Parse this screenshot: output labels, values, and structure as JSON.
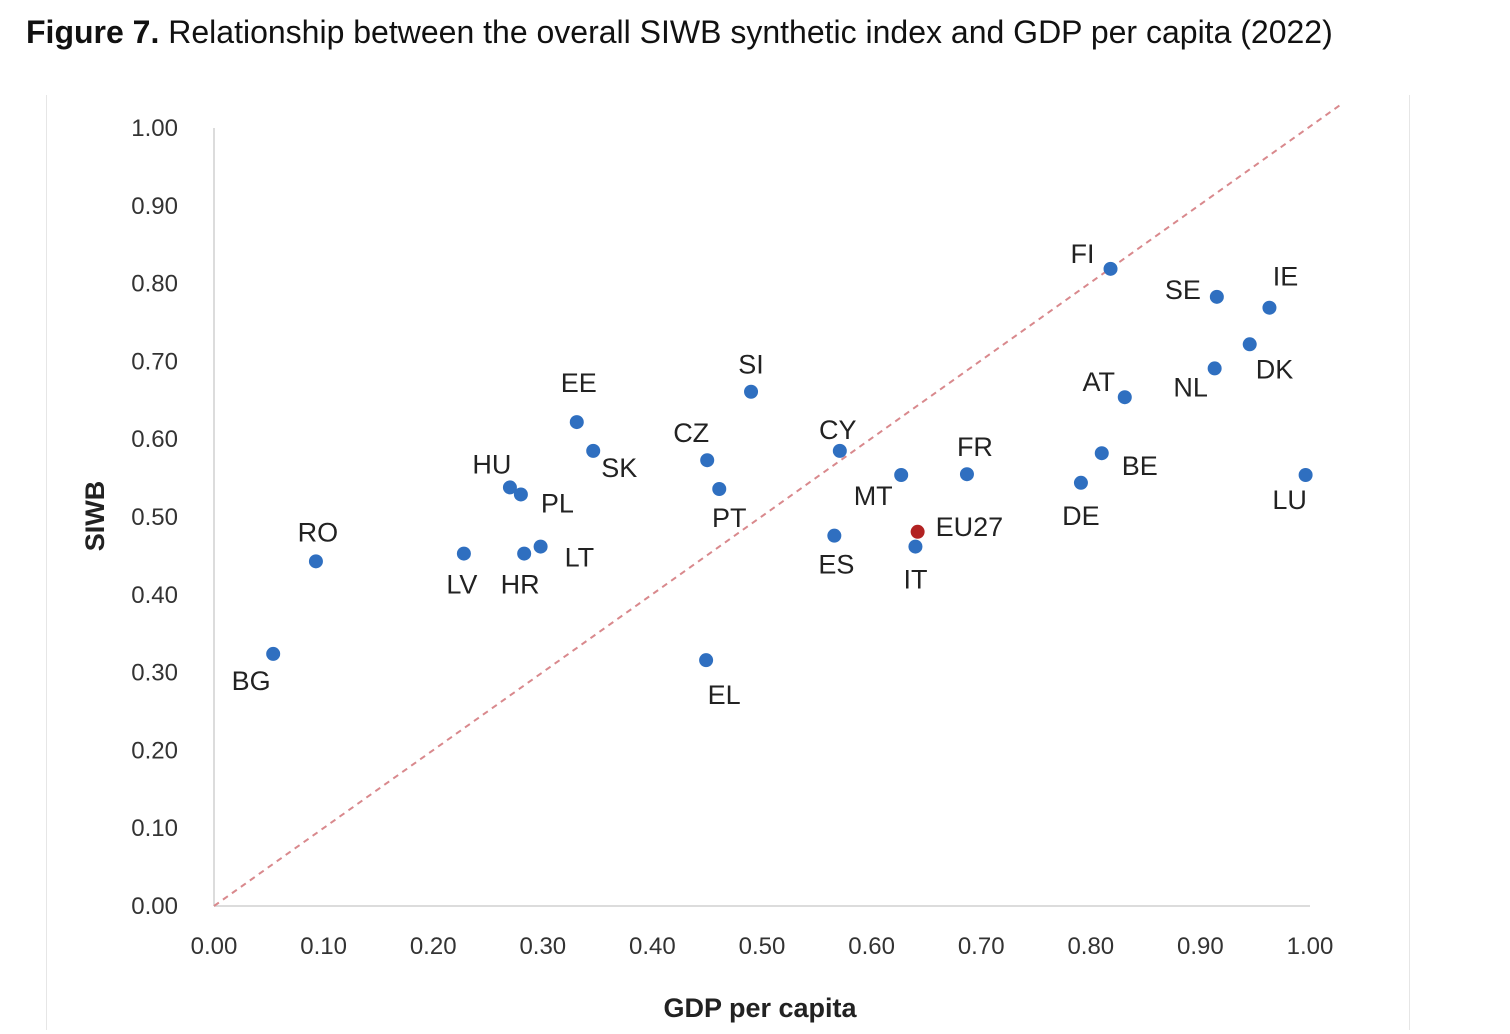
{
  "figure": {
    "label": "Figure 7.",
    "caption": " Relationship between the overall SIWB synthetic index and GDP per capita (2022)"
  },
  "colors": {
    "point": "#2f6fc0",
    "highlight": "#b22222",
    "diagonal": "#d9898d",
    "axis": "#d0d0d0"
  },
  "chart_data": {
    "type": "scatter",
    "xlabel": "GDP per capita",
    "ylabel": "SIWB",
    "xlim": [
      0,
      1
    ],
    "ylim": [
      0,
      1
    ],
    "x_ticks": [
      "0.00",
      "0.10",
      "0.20",
      "0.30",
      "0.40",
      "0.50",
      "0.60",
      "0.70",
      "0.80",
      "0.90",
      "1.00"
    ],
    "y_ticks": [
      "0.00",
      "0.10",
      "0.20",
      "0.30",
      "0.40",
      "0.50",
      "0.60",
      "0.70",
      "0.80",
      "0.90",
      "1.00"
    ],
    "grid": false,
    "reference_line": "y = x (dashed)",
    "points": [
      {
        "label": "BG",
        "x": 0.054,
        "y": 0.324,
        "anchor": "middle",
        "dx": -22,
        "dy": 36
      },
      {
        "label": "RO",
        "x": 0.093,
        "y": 0.443,
        "anchor": "middle",
        "dx": 2,
        "dy": -20
      },
      {
        "label": "LV",
        "x": 0.228,
        "y": 0.453,
        "anchor": "middle",
        "dx": -2,
        "dy": 40
      },
      {
        "label": "HU",
        "x": 0.27,
        "y": 0.538,
        "anchor": "middle",
        "dx": -18,
        "dy": -14
      },
      {
        "label": "PL",
        "x": 0.28,
        "y": 0.529,
        "anchor": "start",
        "dx": 20,
        "dy": 18
      },
      {
        "label": "HR",
        "x": 0.283,
        "y": 0.453,
        "anchor": "middle",
        "dx": -4,
        "dy": 40
      },
      {
        "label": "LT",
        "x": 0.298,
        "y": 0.462,
        "anchor": "start",
        "dx": 24,
        "dy": 20
      },
      {
        "label": "EE",
        "x": 0.331,
        "y": 0.622,
        "anchor": "middle",
        "dx": 2,
        "dy": -30
      },
      {
        "label": "SK",
        "x": 0.346,
        "y": 0.585,
        "anchor": "start",
        "dx": 8,
        "dy": 26
      },
      {
        "label": "EL",
        "x": 0.449,
        "y": 0.316,
        "anchor": "middle",
        "dx": 18,
        "dy": 44
      },
      {
        "label": "CZ",
        "x": 0.45,
        "y": 0.573,
        "anchor": "middle",
        "dx": -16,
        "dy": -18
      },
      {
        "label": "PT",
        "x": 0.461,
        "y": 0.536,
        "anchor": "middle",
        "dx": 10,
        "dy": 38
      },
      {
        "label": "SI",
        "x": 0.49,
        "y": 0.661,
        "anchor": "middle",
        "dx": 0,
        "dy": -18
      },
      {
        "label": "ES",
        "x": 0.566,
        "y": 0.476,
        "anchor": "middle",
        "dx": 2,
        "dy": 38
      },
      {
        "label": "CY",
        "x": 0.571,
        "y": 0.585,
        "anchor": "middle",
        "dx": -2,
        "dy": -12
      },
      {
        "label": "MT",
        "x": 0.627,
        "y": 0.554,
        "anchor": "middle",
        "dx": -28,
        "dy": 30
      },
      {
        "label": "IT",
        "x": 0.64,
        "y": 0.462,
        "anchor": "middle",
        "dx": 0,
        "dy": 42
      },
      {
        "label": "EU27",
        "x": 0.642,
        "y": 0.481,
        "anchor": "start",
        "dx": 18,
        "dy": 4,
        "highlight": true
      },
      {
        "label": "FR",
        "x": 0.687,
        "y": 0.555,
        "anchor": "middle",
        "dx": 8,
        "dy": -18
      },
      {
        "label": "DE",
        "x": 0.791,
        "y": 0.544,
        "anchor": "middle",
        "dx": 0,
        "dy": 42
      },
      {
        "label": "BE",
        "x": 0.81,
        "y": 0.582,
        "anchor": "start",
        "dx": 20,
        "dy": 22
      },
      {
        "label": "FI",
        "x": 0.818,
        "y": 0.819,
        "anchor": "middle",
        "dx": -28,
        "dy": -6
      },
      {
        "label": "AT",
        "x": 0.831,
        "y": 0.654,
        "anchor": "middle",
        "dx": -26,
        "dy": -6
      },
      {
        "label": "NL",
        "x": 0.913,
        "y": 0.691,
        "anchor": "middle",
        "dx": -24,
        "dy": 28
      },
      {
        "label": "SE",
        "x": 0.915,
        "y": 0.783,
        "anchor": "middle",
        "dx": -34,
        "dy": 2
      },
      {
        "label": "DK",
        "x": 0.945,
        "y": 0.722,
        "anchor": "start",
        "dx": 6,
        "dy": 34
      },
      {
        "label": "IE",
        "x": 0.963,
        "y": 0.769,
        "anchor": "middle",
        "dx": 16,
        "dy": -22
      },
      {
        "label": "LU",
        "x": 0.996,
        "y": 0.554,
        "anchor": "middle",
        "dx": -16,
        "dy": 34
      }
    ]
  }
}
